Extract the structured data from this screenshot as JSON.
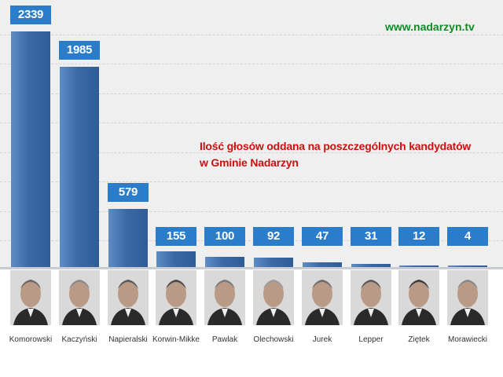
{
  "header": {
    "site_url": "www.nadarzyn.tv",
    "title_line1": "Ilość głosów oddana na poszczególnych kandydatów",
    "title_line2": "w Gminie Nadarzyn"
  },
  "colors": {
    "bar": "#3a6aa6",
    "value_box": "#2b7cc9",
    "title": "#cc1010",
    "site_url": "#148a2a",
    "plot_background": "#efefef"
  },
  "chart_data": {
    "type": "bar",
    "title": "Ilość głosów oddana na poszczególnych kandydatów w Gminie Nadarzyn",
    "categories": [
      "Komorowski",
      "Kaczyński",
      "Napieralski",
      "Korwin-Mikke",
      "Pawlak",
      "Olechowski",
      "Jurek",
      "Lepper",
      "Ziętek",
      "Morawiecki"
    ],
    "values": [
      2339,
      1985,
      579,
      155,
      100,
      92,
      47,
      31,
      12,
      4
    ],
    "xlabel": "",
    "ylabel": "",
    "ylim": [
      0,
      2339
    ],
    "grid": true,
    "candidate_photos": true
  }
}
